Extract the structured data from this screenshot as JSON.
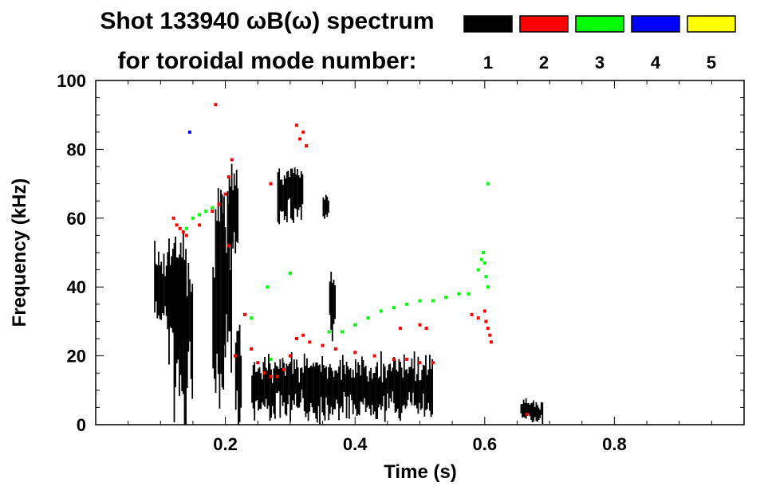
{
  "chart_data": {
    "type": "scatter",
    "title_line1": "Shot 133940 ωB(ω) spectrum",
    "title_line2": "for toroidal mode number:",
    "xlabel": "Time (s)",
    "ylabel": "Frequency (kHz)",
    "xlim": [
      0.0,
      1.0
    ],
    "ylim": [
      0,
      100
    ],
    "x_ticks": [
      0.2,
      0.4,
      0.6,
      0.8
    ],
    "x_tick_labels": [
      "0.2",
      "0.4",
      "0.6",
      "0.8"
    ],
    "y_ticks": [
      0,
      20,
      40,
      60,
      80,
      100
    ],
    "y_tick_labels": [
      "0",
      "20",
      "40",
      "60",
      "80",
      "100"
    ],
    "legend_position": "top-right",
    "legend": [
      {
        "label": "1",
        "color": "#000000"
      },
      {
        "label": "2",
        "color": "#ff0000"
      },
      {
        "label": "3",
        "color": "#00ff00"
      },
      {
        "label": "4",
        "color": "#0000ff"
      },
      {
        "label": "5",
        "color": "#ffff00"
      }
    ],
    "series": [
      {
        "mode": 1,
        "color": "#000000",
        "regions": [
          {
            "x": [
              0.09,
              0.14
            ],
            "y": [
              30,
              50
            ]
          },
          {
            "x": [
              0.11,
              0.14
            ],
            "y": [
              20,
              55
            ]
          },
          {
            "x": [
              0.12,
              0.15
            ],
            "y": [
              5,
              50
            ]
          },
          {
            "x": [
              0.18,
              0.2
            ],
            "y": [
              8,
              60
            ]
          },
          {
            "x": [
              0.195,
              0.21
            ],
            "y": [
              20,
              62
            ]
          },
          {
            "x": [
              0.205,
              0.22
            ],
            "y": [
              50,
              75
            ]
          },
          {
            "x": [
              0.215,
              0.225
            ],
            "y": [
              2,
              30
            ]
          },
          {
            "x": [
              0.24,
              0.52
            ],
            "y": [
              3,
              19
            ]
          },
          {
            "x": [
              0.28,
              0.32
            ],
            "y": [
              60,
              75
            ]
          },
          {
            "x": [
              0.35,
              0.36
            ],
            "y": [
              60,
              67
            ]
          },
          {
            "x": [
              0.36,
              0.37
            ],
            "y": [
              25,
              45
            ]
          },
          {
            "x": [
              0.655,
              0.69
            ],
            "y": [
              1,
              7
            ]
          }
        ]
      },
      {
        "mode": 2,
        "color": "#ff0000",
        "points": [
          [
            0.12,
            60
          ],
          [
            0.125,
            58
          ],
          [
            0.13,
            57
          ],
          [
            0.135,
            56
          ],
          [
            0.14,
            55
          ],
          [
            0.16,
            58
          ],
          [
            0.18,
            62
          ],
          [
            0.19,
            64
          ],
          [
            0.2,
            67
          ],
          [
            0.205,
            72
          ],
          [
            0.21,
            77
          ],
          [
            0.23,
            32
          ],
          [
            0.24,
            22
          ],
          [
            0.25,
            18
          ],
          [
            0.26,
            15
          ],
          [
            0.27,
            14
          ],
          [
            0.28,
            14
          ],
          [
            0.29,
            16
          ],
          [
            0.3,
            20
          ],
          [
            0.31,
            25
          ],
          [
            0.32,
            26
          ],
          [
            0.33,
            24
          ],
          [
            0.35,
            23
          ],
          [
            0.37,
            22
          ],
          [
            0.4,
            21
          ],
          [
            0.43,
            20
          ],
          [
            0.46,
            19
          ],
          [
            0.48,
            19
          ],
          [
            0.5,
            18
          ],
          [
            0.52,
            18
          ],
          [
            0.315,
            83
          ],
          [
            0.32,
            85
          ],
          [
            0.325,
            81
          ],
          [
            0.31,
            87
          ],
          [
            0.6,
            33
          ],
          [
            0.602,
            30
          ],
          [
            0.605,
            28
          ],
          [
            0.608,
            26
          ],
          [
            0.61,
            24
          ],
          [
            0.59,
            31
          ],
          [
            0.58,
            32
          ],
          [
            0.5,
            29
          ],
          [
            0.51,
            28
          ],
          [
            0.47,
            28
          ],
          [
            0.185,
            93
          ],
          [
            0.205,
            52
          ],
          [
            0.215,
            20
          ],
          [
            0.665,
            3
          ],
          [
            0.27,
            70
          ]
        ]
      },
      {
        "mode": 3,
        "color": "#00ff00",
        "points": [
          [
            0.14,
            57
          ],
          [
            0.15,
            60
          ],
          [
            0.16,
            61
          ],
          [
            0.17,
            62
          ],
          [
            0.18,
            63
          ],
          [
            0.38,
            27
          ],
          [
            0.4,
            29
          ],
          [
            0.42,
            31
          ],
          [
            0.44,
            33
          ],
          [
            0.46,
            34
          ],
          [
            0.48,
            35
          ],
          [
            0.5,
            36
          ],
          [
            0.52,
            36
          ],
          [
            0.54,
            37
          ],
          [
            0.56,
            38
          ],
          [
            0.575,
            38
          ],
          [
            0.59,
            45
          ],
          [
            0.595,
            48
          ],
          [
            0.598,
            50
          ],
          [
            0.6,
            47
          ],
          [
            0.602,
            43
          ],
          [
            0.605,
            40
          ],
          [
            0.605,
            70
          ],
          [
            0.265,
            40
          ],
          [
            0.24,
            31
          ],
          [
            0.27,
            19
          ],
          [
            0.3,
            44
          ],
          [
            0.36,
            27
          ]
        ]
      },
      {
        "mode": 4,
        "color": "#0000ff",
        "points": [
          [
            0.145,
            85
          ]
        ]
      }
    ]
  }
}
